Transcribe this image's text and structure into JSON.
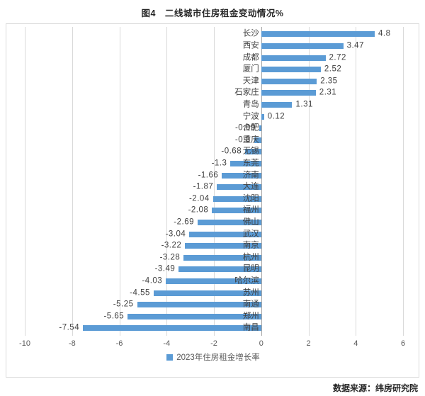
{
  "title": "图4　二线城市住房租金变动情况%",
  "source": "数据来源：纬房研究院",
  "colors": {
    "bar": "#5b9bd5",
    "gridline": "#d9d9d9",
    "axis_line": "#a6a6a6",
    "tick_text": "#595959",
    "label_text": "#404040",
    "title_text": "#262626"
  },
  "chart_data": {
    "type": "bar",
    "orientation": "horizontal",
    "title": "图4　二线城市住房租金变动情况%",
    "legend_label": "2023年住房租金增长率",
    "legend_position": "bottom",
    "grid": true,
    "xlim": [
      -10,
      6
    ],
    "xticks": [
      -10,
      -8,
      -6,
      -4,
      -2,
      0,
      2,
      4,
      6
    ],
    "xtick_labels": [
      "-10",
      "-8",
      "-6",
      "-4",
      "-2",
      "0",
      "2",
      "4",
      "6"
    ],
    "categories": [
      "长沙",
      "西安",
      "成都",
      "厦门",
      "天津",
      "石家庄",
      "青岛",
      "宁波",
      "合肥",
      "重庆",
      "无锡",
      "东莞",
      "济南",
      "大连",
      "沈阳",
      "福州",
      "佛山",
      "武汉",
      "南京",
      "杭州",
      "昆明",
      "哈尔滨",
      "苏州",
      "南通",
      "郑州",
      "南昌"
    ],
    "values": [
      4.8,
      3.47,
      2.72,
      2.52,
      2.35,
      2.31,
      1.31,
      0.12,
      -0.09,
      -0.3,
      -0.68,
      -1.3,
      -1.66,
      -1.87,
      -2.04,
      -2.08,
      -2.69,
      -3.04,
      -3.22,
      -3.28,
      -3.49,
      -4.03,
      -4.55,
      -5.25,
      -5.65,
      -7.54
    ],
    "value_labels": [
      "4.8",
      "3.47",
      "2.72",
      "2.52",
      "2.35",
      "2.31",
      "1.31",
      "0.12",
      "-0.09",
      "-0.3",
      "-0.68",
      "-1.3",
      "-1.66",
      "-1.87",
      "-2.04",
      "-2.08",
      "-2.69",
      "-3.04",
      "-3.22",
      "-3.28",
      "-3.49",
      "-4.03",
      "-4.55",
      "-5.25",
      "-5.65",
      "-7.54"
    ]
  }
}
